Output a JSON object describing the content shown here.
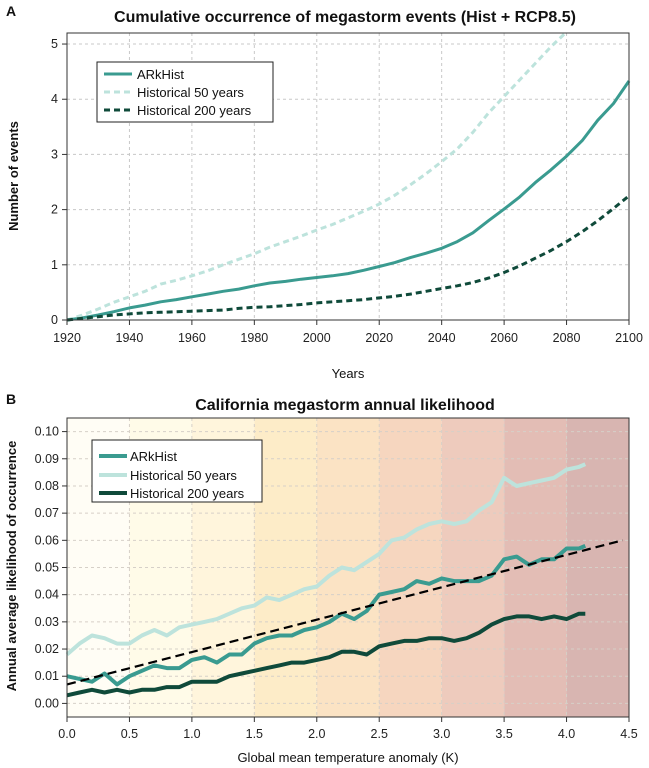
{
  "colors": {
    "arkhist": "#3a9b90",
    "hist50": "#bde3dc",
    "hist200": "#0f4a3a",
    "trend": "#000000"
  },
  "chart_data": [
    {
      "panel": "A",
      "type": "line",
      "title": "Cumulative occurrence of megastorm events (Hist + RCP8.5)",
      "xlabel": "Years",
      "ylabel": "Number of events",
      "xlim": [
        1920,
        2100
      ],
      "ylim": [
        0,
        5.2
      ],
      "xticks": [
        1920,
        1940,
        1960,
        1980,
        2000,
        2020,
        2040,
        2060,
        2080,
        2100
      ],
      "yticks": [
        0,
        1,
        2,
        3,
        4,
        5
      ],
      "grid": true,
      "legend_position": "top-left",
      "series": [
        {
          "name": "ARkHist",
          "style": "solid",
          "x": [
            1920,
            1925,
            1930,
            1935,
            1940,
            1945,
            1950,
            1955,
            1960,
            1965,
            1970,
            1975,
            1980,
            1985,
            1990,
            1995,
            2000,
            2005,
            2010,
            2015,
            2020,
            2025,
            2030,
            2035,
            2040,
            2045,
            2050,
            2055,
            2060,
            2065,
            2070,
            2075,
            2080,
            2085,
            2090,
            2095,
            2100
          ],
          "y": [
            0,
            0.04,
            0.09,
            0.15,
            0.22,
            0.27,
            0.33,
            0.37,
            0.42,
            0.47,
            0.52,
            0.56,
            0.62,
            0.67,
            0.7,
            0.74,
            0.77,
            0.8,
            0.84,
            0.9,
            0.97,
            1.04,
            1.13,
            1.21,
            1.3,
            1.42,
            1.58,
            1.8,
            2.01,
            2.23,
            2.49,
            2.72,
            2.97,
            3.25,
            3.62,
            3.92,
            4.33
          ]
        },
        {
          "name": "Historical 50 years",
          "style": "dashed",
          "x": [
            1920,
            1925,
            1930,
            1935,
            1940,
            1945,
            1950,
            1955,
            1960,
            1965,
            1970,
            1975,
            1980,
            1985,
            1990,
            1995,
            2000,
            2005,
            2010,
            2015,
            2020,
            2025,
            2030,
            2035,
            2040,
            2045,
            2050,
            2055,
            2060,
            2065,
            2070,
            2075,
            2080
          ],
          "y": [
            0,
            0.09,
            0.2,
            0.32,
            0.42,
            0.52,
            0.65,
            0.72,
            0.8,
            0.89,
            1.0,
            1.1,
            1.2,
            1.32,
            1.42,
            1.52,
            1.63,
            1.73,
            1.85,
            1.97,
            2.1,
            2.26,
            2.45,
            2.65,
            2.87,
            3.1,
            3.4,
            3.75,
            4.05,
            4.35,
            4.65,
            4.95,
            5.22
          ]
        },
        {
          "name": "Historical 200 years",
          "style": "dashed",
          "x": [
            1920,
            1925,
            1930,
            1935,
            1940,
            1945,
            1950,
            1955,
            1960,
            1965,
            1970,
            1975,
            1980,
            1985,
            1990,
            1995,
            2000,
            2005,
            2010,
            2015,
            2020,
            2025,
            2030,
            2035,
            2040,
            2045,
            2050,
            2055,
            2060,
            2065,
            2070,
            2075,
            2080,
            2085,
            2090,
            2095,
            2100
          ],
          "y": [
            0,
            0.03,
            0.06,
            0.09,
            0.11,
            0.13,
            0.14,
            0.15,
            0.16,
            0.17,
            0.18,
            0.21,
            0.23,
            0.24,
            0.26,
            0.28,
            0.31,
            0.33,
            0.35,
            0.37,
            0.4,
            0.43,
            0.47,
            0.52,
            0.57,
            0.62,
            0.68,
            0.76,
            0.86,
            0.98,
            1.12,
            1.26,
            1.42,
            1.6,
            1.8,
            2.02,
            2.25
          ]
        }
      ]
    },
    {
      "panel": "B",
      "type": "line",
      "title": "California megastorm annual likelihood",
      "xlabel": "Global mean temperature anomaly (K)",
      "ylabel": "Annual average likelihood of occurrence",
      "xlim": [
        0,
        4.5
      ],
      "ylim": [
        -0.005,
        0.105
      ],
      "xticks": [
        0.0,
        0.5,
        1.0,
        1.5,
        2.0,
        2.5,
        3.0,
        3.5,
        4.0,
        4.5
      ],
      "yticks": [
        0.0,
        0.01,
        0.02,
        0.03,
        0.04,
        0.05,
        0.06,
        0.07,
        0.08,
        0.09,
        0.1
      ],
      "grid": true,
      "legend_position": "top-left",
      "background_bands": [
        "#fffdf5",
        "#fffbe8",
        "#fff5dc",
        "#fdecc8",
        "#fbe3c4",
        "#f6d6bf",
        "#eecbbd",
        "#e3bdb5",
        "#d8b5b1"
      ],
      "series": [
        {
          "name": "ARkHist",
          "style": "solid",
          "x": [
            0,
            0.1,
            0.2,
            0.3,
            0.4,
            0.5,
            0.6,
            0.7,
            0.8,
            0.9,
            1.0,
            1.1,
            1.2,
            1.3,
            1.4,
            1.5,
            1.6,
            1.7,
            1.8,
            1.9,
            2.0,
            2.1,
            2.2,
            2.3,
            2.4,
            2.5,
            2.6,
            2.7,
            2.8,
            2.9,
            3.0,
            3.1,
            3.2,
            3.3,
            3.4,
            3.5,
            3.6,
            3.7,
            3.8,
            3.9,
            4.0,
            4.1,
            4.15
          ],
          "y": [
            0.01,
            0.009,
            0.008,
            0.011,
            0.007,
            0.01,
            0.012,
            0.014,
            0.013,
            0.013,
            0.016,
            0.017,
            0.015,
            0.018,
            0.018,
            0.022,
            0.024,
            0.025,
            0.025,
            0.027,
            0.028,
            0.03,
            0.033,
            0.031,
            0.034,
            0.04,
            0.041,
            0.042,
            0.045,
            0.044,
            0.046,
            0.045,
            0.045,
            0.045,
            0.047,
            0.053,
            0.054,
            0.051,
            0.053,
            0.053,
            0.057,
            0.057,
            0.058
          ]
        },
        {
          "name": "Historical 50 years",
          "style": "solid",
          "x": [
            0,
            0.1,
            0.2,
            0.3,
            0.4,
            0.5,
            0.6,
            0.7,
            0.8,
            0.9,
            1.0,
            1.1,
            1.2,
            1.3,
            1.4,
            1.5,
            1.6,
            1.7,
            1.8,
            1.9,
            2.0,
            2.1,
            2.2,
            2.3,
            2.4,
            2.5,
            2.6,
            2.7,
            2.8,
            2.9,
            3.0,
            3.1,
            3.2,
            3.3,
            3.4,
            3.5,
            3.6,
            3.7,
            3.8,
            3.9,
            4.0,
            4.1,
            4.15
          ],
          "y": [
            0.018,
            0.022,
            0.025,
            0.024,
            0.022,
            0.022,
            0.025,
            0.027,
            0.025,
            0.028,
            0.029,
            0.03,
            0.031,
            0.033,
            0.035,
            0.036,
            0.039,
            0.038,
            0.04,
            0.042,
            0.043,
            0.047,
            0.05,
            0.049,
            0.052,
            0.055,
            0.06,
            0.061,
            0.064,
            0.066,
            0.067,
            0.066,
            0.067,
            0.071,
            0.074,
            0.083,
            0.08,
            0.081,
            0.082,
            0.083,
            0.086,
            0.087,
            0.088
          ]
        },
        {
          "name": "Historical 200 years",
          "style": "solid",
          "x": [
            0,
            0.1,
            0.2,
            0.3,
            0.4,
            0.5,
            0.6,
            0.7,
            0.8,
            0.9,
            1.0,
            1.1,
            1.2,
            1.3,
            1.4,
            1.5,
            1.6,
            1.7,
            1.8,
            1.9,
            2.0,
            2.1,
            2.2,
            2.3,
            2.4,
            2.5,
            2.6,
            2.7,
            2.8,
            2.9,
            3.0,
            3.1,
            3.2,
            3.3,
            3.4,
            3.5,
            3.6,
            3.7,
            3.8,
            3.9,
            4.0,
            4.1,
            4.15
          ],
          "y": [
            0.003,
            0.004,
            0.005,
            0.004,
            0.005,
            0.004,
            0.005,
            0.005,
            0.006,
            0.006,
            0.008,
            0.008,
            0.008,
            0.01,
            0.011,
            0.012,
            0.013,
            0.014,
            0.015,
            0.015,
            0.016,
            0.017,
            0.019,
            0.019,
            0.018,
            0.021,
            0.022,
            0.023,
            0.023,
            0.024,
            0.024,
            0.023,
            0.024,
            0.026,
            0.029,
            0.031,
            0.032,
            0.032,
            0.031,
            0.032,
            0.031,
            0.033,
            0.033
          ]
        },
        {
          "name": "",
          "style": "dashed",
          "x": [
            0.0,
            4.45
          ],
          "y": [
            0.007,
            0.06
          ]
        }
      ]
    }
  ]
}
